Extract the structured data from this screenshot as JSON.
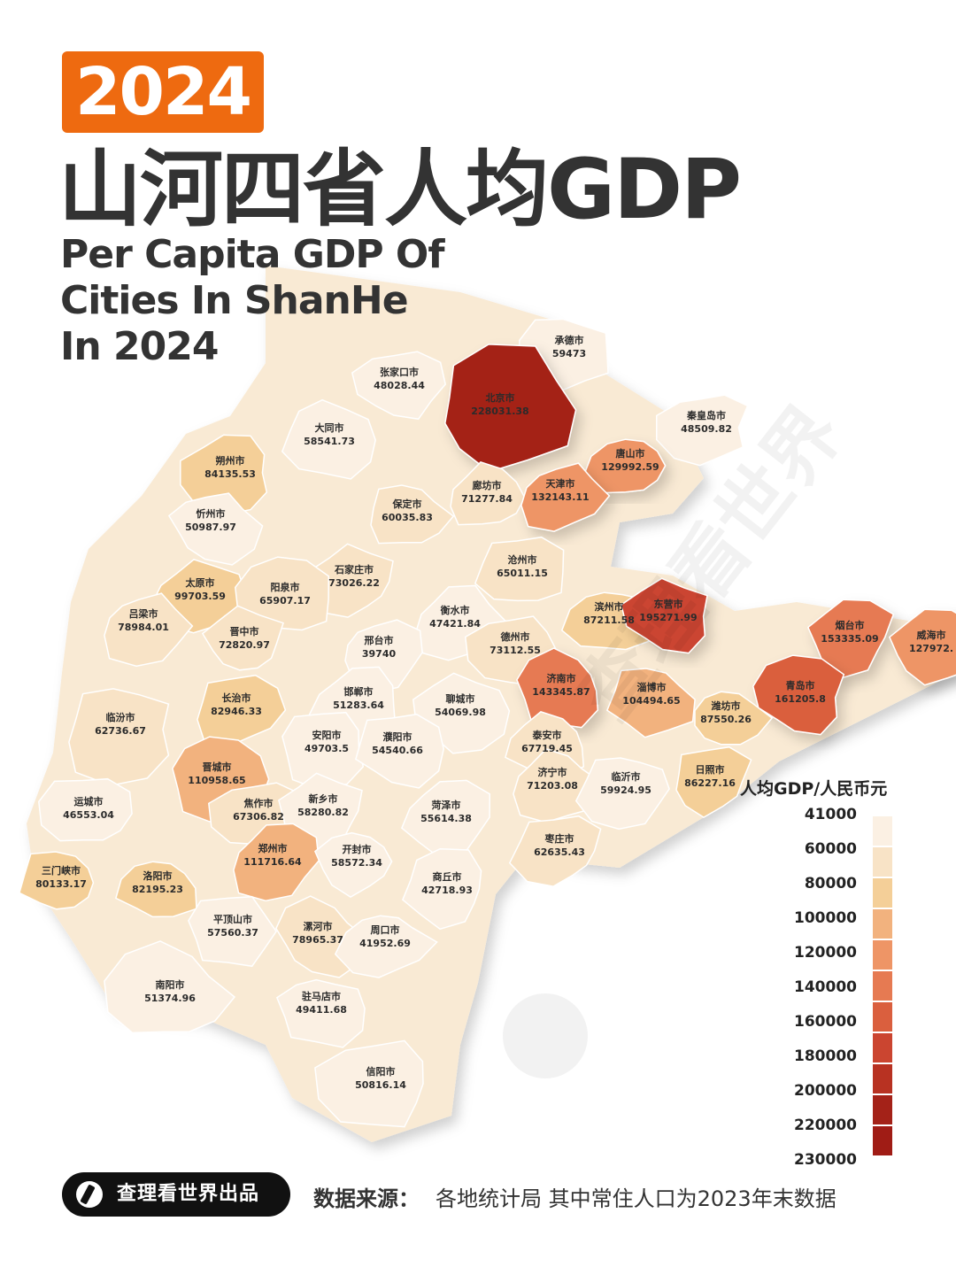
{
  "header": {
    "year": "2024",
    "title_cn": "山河四省人均GDP",
    "title_en_lines": [
      "Per Capita GDP Of",
      "Cities In ShanHe",
      "In 2024"
    ]
  },
  "cities": [
    {
      "name": "承德市",
      "value": "59473",
      "gdp": 59473
    },
    {
      "name": "张家口市",
      "value": "48028.44",
      "gdp": 48028.44
    },
    {
      "name": "北京市",
      "value": "228031.38",
      "gdp": 228031.38
    },
    {
      "name": "秦皇岛市",
      "value": "48509.82",
      "gdp": 48509.82
    },
    {
      "name": "大同市",
      "value": "58541.73",
      "gdp": 58541.73
    },
    {
      "name": "朔州市",
      "value": "84135.53",
      "gdp": 84135.53
    },
    {
      "name": "唐山市",
      "value": "129992.59",
      "gdp": 129992.59
    },
    {
      "name": "廊坊市",
      "value": "71277.84",
      "gdp": 71277.84
    },
    {
      "name": "天津市",
      "value": "132143.11",
      "gdp": 132143.11
    },
    {
      "name": "保定市",
      "value": "60035.83",
      "gdp": 60035.83
    },
    {
      "name": "忻州市",
      "value": "50987.97",
      "gdp": 50987.97
    },
    {
      "name": "沧州市",
      "value": "65011.15",
      "gdp": 65011.15
    },
    {
      "name": "石家庄市",
      "value": "73026.22",
      "gdp": 73026.22
    },
    {
      "name": "太原市",
      "value": "99703.59",
      "gdp": 99703.59
    },
    {
      "name": "阳泉市",
      "value": "65907.17",
      "gdp": 65907.17
    },
    {
      "name": "吕梁市",
      "value": "78984.01",
      "gdp": 78984.01
    },
    {
      "name": "衡水市",
      "value": "47421.84",
      "gdp": 47421.84
    },
    {
      "name": "滨州市",
      "value": "87211.58",
      "gdp": 87211.58
    },
    {
      "name": "东营市",
      "value": "195271.99",
      "gdp": 195271.99
    },
    {
      "name": "烟台市",
      "value": "153335.09",
      "gdp": 153335.09
    },
    {
      "name": "威海市",
      "value": "127972.",
      "gdp": 127972
    },
    {
      "name": "晋中市",
      "value": "72820.97",
      "gdp": 72820.97
    },
    {
      "name": "邢台市",
      "value": "39740",
      "gdp": 39740
    },
    {
      "name": "德州市",
      "value": "73112.55",
      "gdp": 73112.55
    },
    {
      "name": "济南市",
      "value": "143345.87",
      "gdp": 143345.87
    },
    {
      "name": "淄博市",
      "value": "104494.65",
      "gdp": 104494.65
    },
    {
      "name": "青岛市",
      "value": "161205.8",
      "gdp": 161205.8
    },
    {
      "name": "潍坊市",
      "value": "87550.26",
      "gdp": 87550.26
    },
    {
      "name": "长治市",
      "value": "82946.33",
      "gdp": 82946.33
    },
    {
      "name": "邯郸市",
      "value": "51283.64",
      "gdp": 51283.64
    },
    {
      "name": "聊城市",
      "value": "54069.98",
      "gdp": 54069.98
    },
    {
      "name": "临汾市",
      "value": "62736.67",
      "gdp": 62736.67
    },
    {
      "name": "安阳市",
      "value": "49703.5",
      "gdp": 49703.5
    },
    {
      "name": "濮阳市",
      "value": "54540.66",
      "gdp": 54540.66
    },
    {
      "name": "泰安市",
      "value": "67719.45",
      "gdp": 67719.45
    },
    {
      "name": "晋城市",
      "value": "110958.65",
      "gdp": 110958.65
    },
    {
      "name": "济宁市",
      "value": "71203.08",
      "gdp": 71203.08
    },
    {
      "name": "临沂市",
      "value": "59924.95",
      "gdp": 59924.95
    },
    {
      "name": "日照市",
      "value": "86227.16",
      "gdp": 86227.16
    },
    {
      "name": "运城市",
      "value": "46553.04",
      "gdp": 46553.04
    },
    {
      "name": "焦作市",
      "value": "67306.82",
      "gdp": 67306.82
    },
    {
      "name": "新乡市",
      "value": "58280.82",
      "gdp": 58280.82
    },
    {
      "name": "菏泽市",
      "value": "55614.38",
      "gdp": 55614.38
    },
    {
      "name": "郑州市",
      "value": "111716.64",
      "gdp": 111716.64
    },
    {
      "name": "开封市",
      "value": "58572.34",
      "gdp": 58572.34
    },
    {
      "name": "枣庄市",
      "value": "62635.43",
      "gdp": 62635.43
    },
    {
      "name": "三门峡市",
      "value": "80133.17",
      "gdp": 80133.17
    },
    {
      "name": "洛阳市",
      "value": "82195.23",
      "gdp": 82195.23
    },
    {
      "name": "商丘市",
      "value": "42718.93",
      "gdp": 42718.93
    },
    {
      "name": "平顶山市",
      "value": "57560.37",
      "gdp": 57560.37
    },
    {
      "name": "漯河市",
      "value": "78965.37",
      "gdp": 78965.37
    },
    {
      "name": "周口市",
      "value": "41952.69",
      "gdp": 41952.69
    },
    {
      "name": "南阳市",
      "value": "51374.96",
      "gdp": 51374.96
    },
    {
      "name": "驻马店市",
      "value": "49411.68",
      "gdp": 49411.68
    },
    {
      "name": "信阳市",
      "value": "50816.14",
      "gdp": 50816.14
    }
  ],
  "legend": {
    "title": "人均GDP/人民币元",
    "labels": [
      "41000",
      "60000",
      "80000",
      "100000",
      "120000",
      "140000",
      "160000",
      "180000",
      "200000",
      "220000",
      "230000"
    ],
    "colors": [
      "#fbf0e3",
      "#f8e3c6",
      "#f4cf98",
      "#f2b27e",
      "#ee9566",
      "#e67a52",
      "#da5f3e",
      "#cb4530",
      "#b83222",
      "#a42218",
      "#a01c15"
    ]
  },
  "watermark": "查理看世界",
  "footer": {
    "brand": "查理看世界出品",
    "source_label": "数据来源：",
    "source_text": "各地统计局  其中常住人口为2023年末数据"
  }
}
